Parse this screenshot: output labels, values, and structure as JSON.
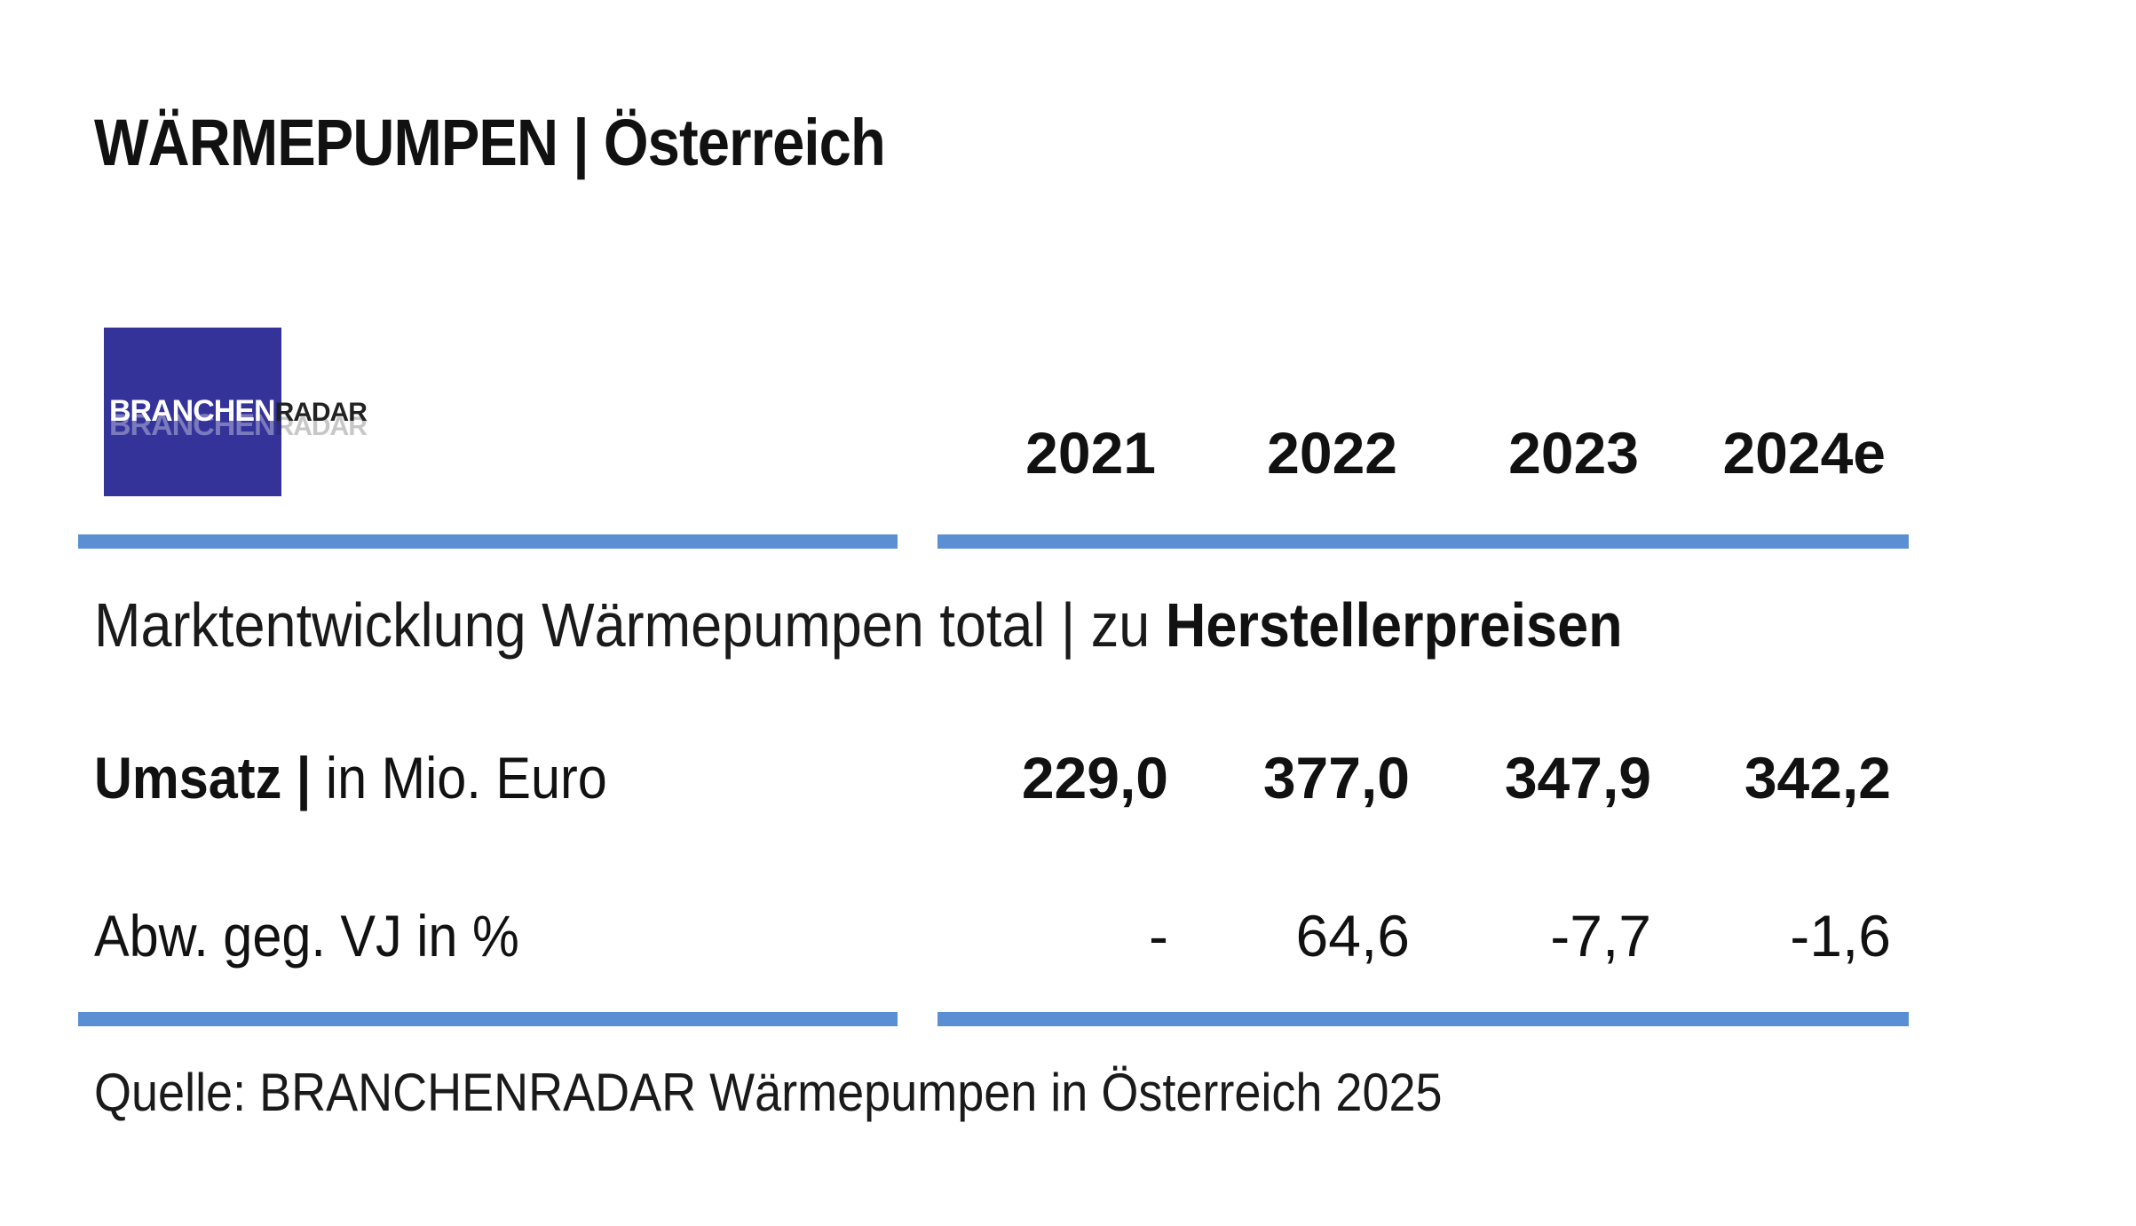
{
  "title": "WÄRMEPUMPEN | Österreich",
  "logo": {
    "part1": "BRANCHEN",
    "part2": "RADAR"
  },
  "table": {
    "years": [
      "2021",
      "2022",
      "2023",
      "2024e"
    ],
    "subtitle_prefix": "Marktentwicklung Wärmepumpen total | zu ",
    "subtitle_bold": "Herstellerpreisen",
    "rows": [
      {
        "label_bold": "Umsatz |",
        "label_rest": " in Mio. Euro",
        "values": [
          "229,0",
          "377,0",
          "347,9",
          "342,2"
        ]
      },
      {
        "label_bold": "",
        "label_rest": "Abw. geg. VJ in %",
        "values": [
          "-",
          "64,6",
          "-7,7",
          "-1,6"
        ]
      }
    ]
  },
  "source": "Quelle: BRANCHENRADAR Wärmepumpen in Österreich 2025",
  "colors": {
    "rule": "#5a8fd4",
    "logo_bg": "#33339a"
  }
}
